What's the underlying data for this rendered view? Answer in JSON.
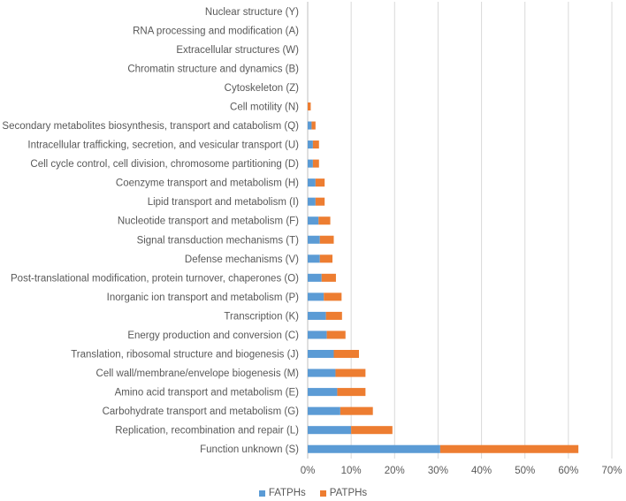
{
  "chart_data": {
    "type": "bar",
    "orientation": "horizontal",
    "stacked": true,
    "categories": [
      "Nuclear structure (Y)",
      "RNA processing and modification (A)",
      "Extracellular structures (W)",
      "Chromatin structure and dynamics (B)",
      "Cytoskeleton (Z)",
      "Cell motility (N)",
      "Secondary metabolites biosynthesis, transport and catabolism (Q)",
      "Intracellular trafficking, secretion, and vesicular transport (U)",
      "Cell cycle control, cell division, chromosome partitioning (D)",
      "Coenzyme transport and metabolism (H)",
      "Lipid transport and metabolism (I)",
      "Nucleotide transport and metabolism (F)",
      "Signal transduction mechanisms (T)",
      "Defense mechanisms (V)",
      "Post-translational modification, protein turnover, chaperones (O)",
      "Inorganic ion transport and metabolism (P)",
      "Transcription (K)",
      "Energy production and conversion (C)",
      "Translation, ribosomal structure and biogenesis (J)",
      "Cell wall/membrane/envelope biogenesis (M)",
      "Amino acid transport and metabolism (E)",
      "Carbohydrate transport and metabolism (G)",
      "Replication, recombination and repair (L)",
      "Function unknown (S)"
    ],
    "series": [
      {
        "name": "FATPHs",
        "color": "#5B9BD5",
        "values": [
          0,
          0,
          0,
          0,
          0,
          0,
          0.9,
          1.2,
          1.2,
          1.8,
          1.8,
          2.5,
          2.8,
          2.8,
          3.2,
          3.7,
          4.2,
          4.4,
          6.0,
          6.4,
          6.8,
          7.5,
          10.0,
          30.5
        ]
      },
      {
        "name": "PATPHs",
        "color": "#ED7D31",
        "values": [
          0,
          0,
          0,
          0,
          0,
          0.7,
          0.9,
          1.4,
          1.4,
          2.1,
          2.1,
          2.7,
          3.2,
          2.9,
          3.3,
          4.1,
          3.7,
          4.3,
          5.8,
          6.9,
          6.5,
          7.5,
          9.5,
          31.8
        ]
      }
    ],
    "x_ticks": [
      "0%",
      "10%",
      "20%",
      "30%",
      "40%",
      "50%",
      "60%",
      "70%"
    ],
    "xlim": [
      0,
      70
    ],
    "unit": "%",
    "grid": "vertical",
    "legend_position": "bottom",
    "title": "",
    "xlabel": "",
    "ylabel": ""
  }
}
